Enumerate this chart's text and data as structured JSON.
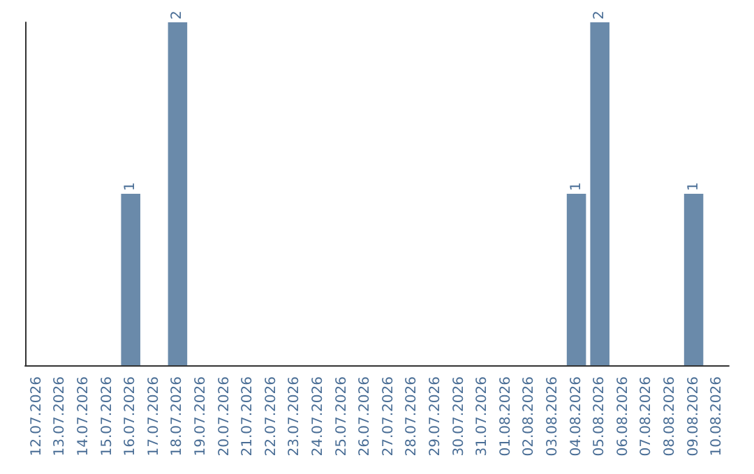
{
  "chart_data": {
    "type": "bar",
    "categories": [
      "12.07.2026",
      "13.07.2026",
      "14.07.2026",
      "15.07.2026",
      "16.07.2026",
      "17.07.2026",
      "18.07.2026",
      "19.07.2026",
      "20.07.2026",
      "21.07.2026",
      "22.07.2026",
      "23.07.2026",
      "24.07.2026",
      "25.07.2026",
      "26.07.2026",
      "27.07.2026",
      "28.07.2026",
      "29.07.2026",
      "30.07.2026",
      "31.07.2026",
      "01.08.2026",
      "02.08.2026",
      "03.08.2026",
      "04.08.2026",
      "05.08.2026",
      "06.08.2026",
      "07.08.2026",
      "08.08.2026",
      "09.08.2026",
      "10.08.2026"
    ],
    "values": [
      0,
      0,
      0,
      0,
      1,
      0,
      2,
      0,
      0,
      0,
      0,
      0,
      0,
      0,
      0,
      0,
      0,
      0,
      0,
      0,
      0,
      0,
      0,
      1,
      2,
      0,
      0,
      0,
      1,
      0
    ],
    "value_labels": [
      null,
      null,
      null,
      null,
      "1",
      null,
      "2",
      null,
      null,
      null,
      null,
      null,
      null,
      null,
      null,
      null,
      null,
      null,
      null,
      null,
      null,
      null,
      null,
      "1",
      "2",
      null,
      null,
      null,
      "1",
      null
    ],
    "color": "#6a8aaa",
    "tick_labels": "x"
  }
}
